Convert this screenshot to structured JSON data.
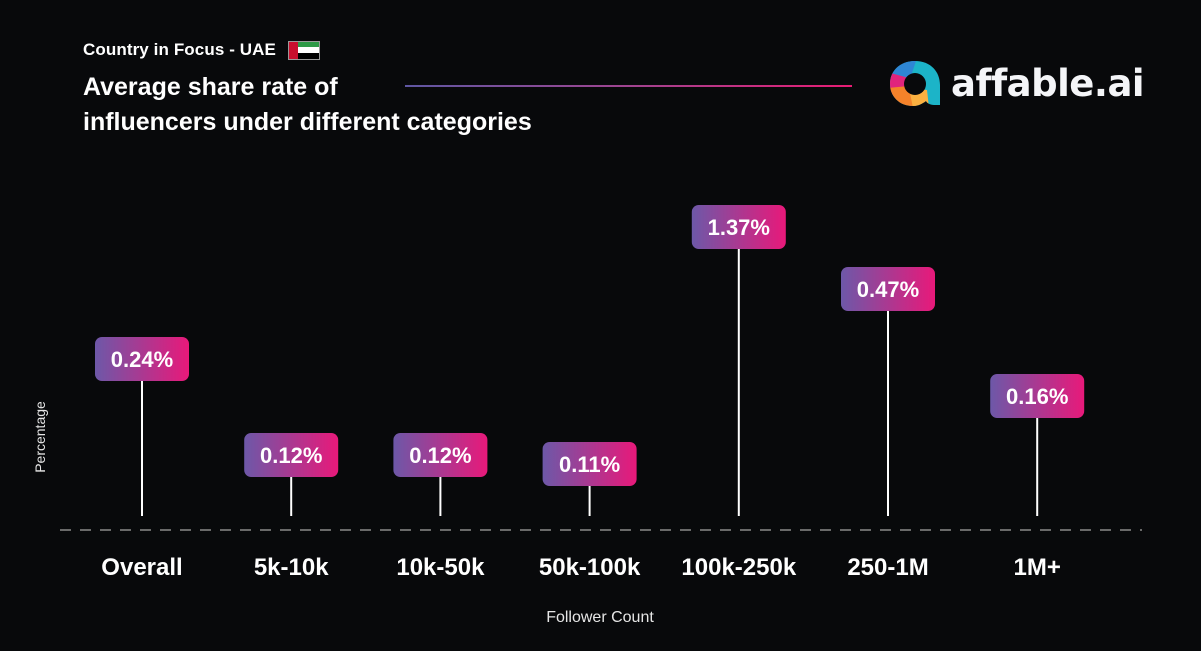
{
  "header": {
    "kicker": "Country in Focus - UAE",
    "flag": "uae-flag-icon",
    "title_line1": "Average share rate of",
    "title_line2": "influencers under different categories"
  },
  "brand": {
    "name": "affable.ai",
    "logo_icon": "affable-logo-icon",
    "colors": {
      "accent_start": "#6d58a8",
      "accent_end": "#e8197a"
    }
  },
  "chart_data": {
    "type": "bar",
    "style": "lollipop-with-label-pills",
    "title": "Average share rate of influencers under different categories",
    "subtitle": "Country in Focus - UAE",
    "xlabel": "Follower Count",
    "ylabel": "Percentage",
    "categories": [
      "Overall",
      "5k-10k",
      "10k-50k",
      "50k-100k",
      "100k-250k",
      "250-1M",
      "1M+"
    ],
    "values": [
      0.24,
      0.12,
      0.12,
      0.11,
      1.37,
      0.47,
      0.16
    ],
    "value_labels": [
      "0.24%",
      "0.12%",
      "0.12%",
      "0.11%",
      "1.37%",
      "0.47%",
      "0.16%"
    ],
    "unit": "%",
    "grid": false,
    "baseline": "dashed",
    "legend": "none"
  }
}
